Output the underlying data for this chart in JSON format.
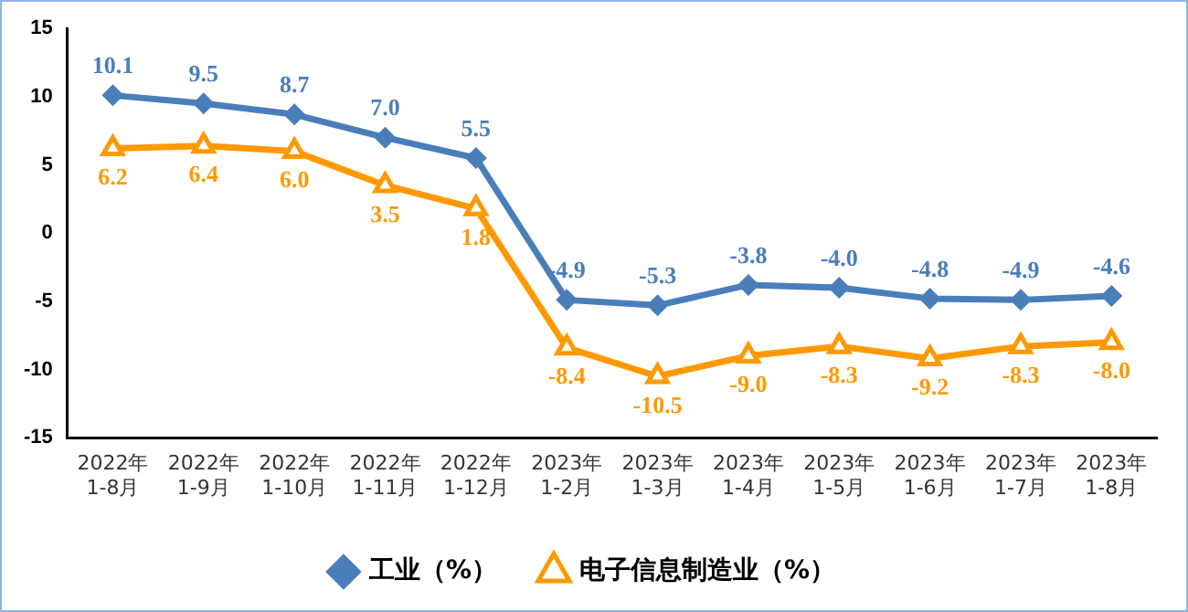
{
  "chart_data": {
    "type": "line",
    "categories": [
      "2022年\n1-8月",
      "2022年\n1-9月",
      "2022年\n1-10月",
      "2022年\n1-11月",
      "2022年\n1-12月",
      "2023年\n1-2月",
      "2023年\n1-3月",
      "2023年\n1-4月",
      "2023年\n1-5月",
      "2023年\n1-6月",
      "2023年\n1-7月",
      "2023年\n1-8月"
    ],
    "series": [
      {
        "name": "工业（%）",
        "color": "#4a7ebb",
        "marker": "diamond",
        "values": [
          10.1,
          9.5,
          8.7,
          7.0,
          5.5,
          -4.9,
          -5.3,
          -3.8,
          -4.0,
          -4.8,
          -4.9,
          -4.6
        ],
        "value_labels": [
          "10.1",
          "9.5",
          "8.7",
          "7.0",
          "5.5",
          "-4.9",
          "-5.3",
          "-3.8",
          "-4.0",
          "-4.8",
          "-4.9",
          "-4.6"
        ]
      },
      {
        "name": "电子信息制造业（%）",
        "color": "#ff9900",
        "marker": "triangle",
        "values": [
          6.2,
          6.4,
          6.0,
          3.5,
          1.8,
          -8.4,
          -10.5,
          -9.0,
          -8.3,
          -9.2,
          -8.3,
          -8.0
        ],
        "value_labels": [
          "6.2",
          "6.4",
          "6.0",
          "3.5",
          "1.8",
          "-8.4",
          "-10.5",
          "-9.0",
          "-8.3",
          "-9.2",
          "-8.3",
          "-8.0"
        ]
      }
    ],
    "ylim": [
      -15,
      15
    ],
    "yticks": [
      -15,
      -10,
      -5,
      0,
      5,
      10,
      15
    ],
    "grid": false,
    "legend": "bottom",
    "line_style": "solid"
  }
}
